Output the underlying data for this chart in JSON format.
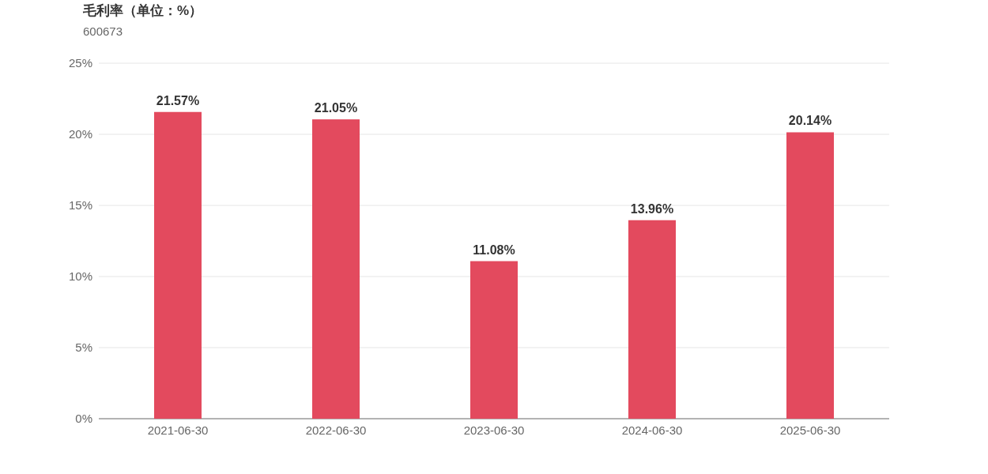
{
  "chart_data": {
    "type": "bar",
    "title": "毛利率（单位：%）",
    "subtitle": "600673",
    "categories": [
      "2021-06-30",
      "2022-06-30",
      "2023-06-30",
      "2024-06-30",
      "2025-06-30"
    ],
    "series": [
      {
        "color": "#e34a5e",
        "values": [
          21.57,
          21.05,
          11.08,
          13.96,
          20.14
        ]
      }
    ],
    "value_labels": [
      "21.57%",
      "21.05%",
      "11.08%",
      "13.96%",
      "20.14%"
    ],
    "ylim": [
      0,
      25
    ],
    "yticks": [
      {
        "value": 0,
        "label": "0%"
      },
      {
        "value": 5,
        "label": "5%"
      },
      {
        "value": 10,
        "label": "10%"
      },
      {
        "value": 15,
        "label": "15%"
      },
      {
        "value": 20,
        "label": "20%"
      },
      {
        "value": 25,
        "label": "25%"
      }
    ],
    "grid": "y"
  }
}
